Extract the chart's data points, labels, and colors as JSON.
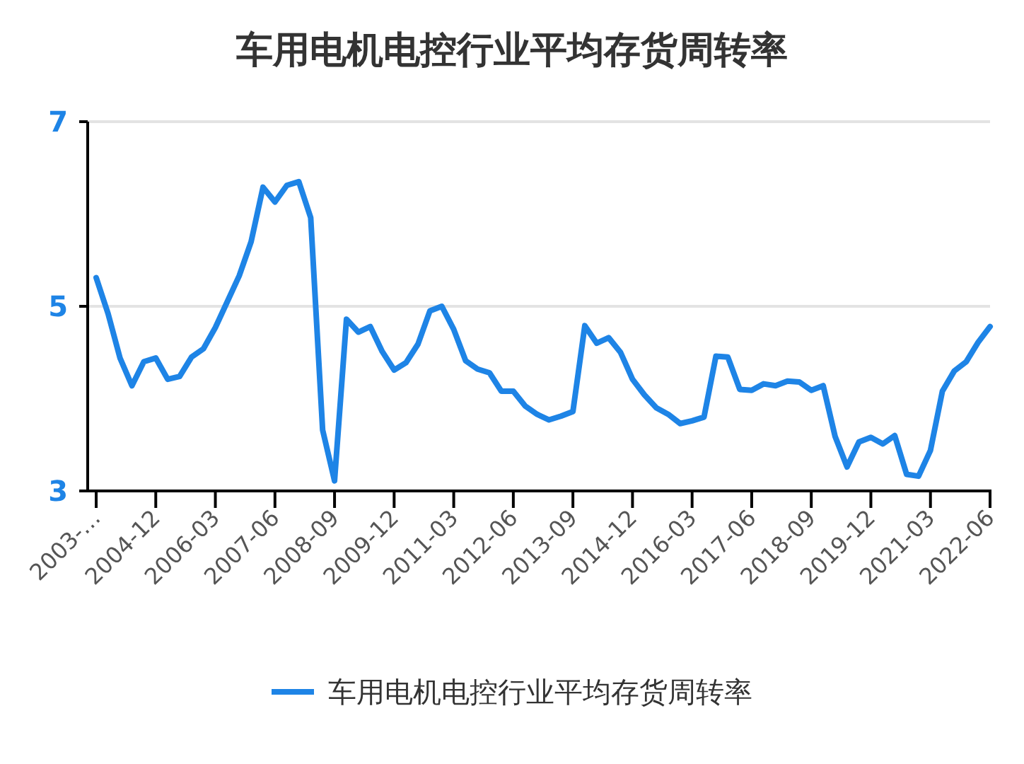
{
  "chart_data": {
    "type": "line",
    "title": "车用电机电控行业平均存货周转率",
    "categories": [
      "2003-…",
      null,
      null,
      null,
      null,
      "2004-12",
      null,
      null,
      null,
      null,
      "2006-03",
      null,
      null,
      null,
      null,
      "2007-06",
      null,
      null,
      null,
      null,
      "2008-09",
      null,
      null,
      null,
      null,
      "2009-12",
      null,
      null,
      null,
      null,
      "2011-03",
      null,
      null,
      null,
      null,
      "2012-06",
      null,
      null,
      null,
      null,
      "2013-09",
      null,
      null,
      null,
      null,
      "2014-12",
      null,
      null,
      null,
      null,
      "2016-03",
      null,
      null,
      null,
      null,
      "2017-06",
      null,
      null,
      null,
      null,
      "2018-09",
      null,
      null,
      null,
      null,
      "2019-12",
      null,
      null,
      null,
      null,
      "2021-03",
      null,
      null,
      null,
      null,
      "2022-06"
    ],
    "series": [
      {
        "name": "车用电机电控行业平均存货周转率",
        "color": "#1e84e6",
        "values": [
          5.31,
          4.92,
          4.44,
          4.14,
          4.4,
          4.44,
          4.21,
          4.24,
          4.45,
          4.54,
          4.77,
          5.05,
          5.33,
          5.7,
          6.29,
          6.13,
          6.31,
          6.35,
          5.96,
          3.66,
          3.11,
          4.86,
          4.72,
          4.78,
          4.51,
          4.31,
          4.39,
          4.59,
          4.95,
          5.0,
          4.75,
          4.41,
          4.32,
          4.28,
          4.08,
          4.08,
          3.92,
          3.83,
          3.77,
          3.81,
          3.86,
          4.79,
          4.6,
          4.66,
          4.5,
          4.21,
          4.04,
          3.9,
          3.83,
          3.73,
          3.76,
          3.8,
          4.46,
          4.45,
          4.1,
          4.09,
          4.16,
          4.14,
          4.19,
          4.18,
          4.09,
          4.14,
          3.59,
          3.26,
          3.53,
          3.58,
          3.51,
          3.6,
          3.18,
          3.16,
          3.44,
          4.08,
          4.3,
          4.4,
          4.61,
          4.78
        ]
      }
    ],
    "ylim": [
      3,
      7
    ],
    "yticks": [
      3,
      5,
      7
    ],
    "grid": "y",
    "legend": "bottom",
    "line_style": "solid"
  }
}
